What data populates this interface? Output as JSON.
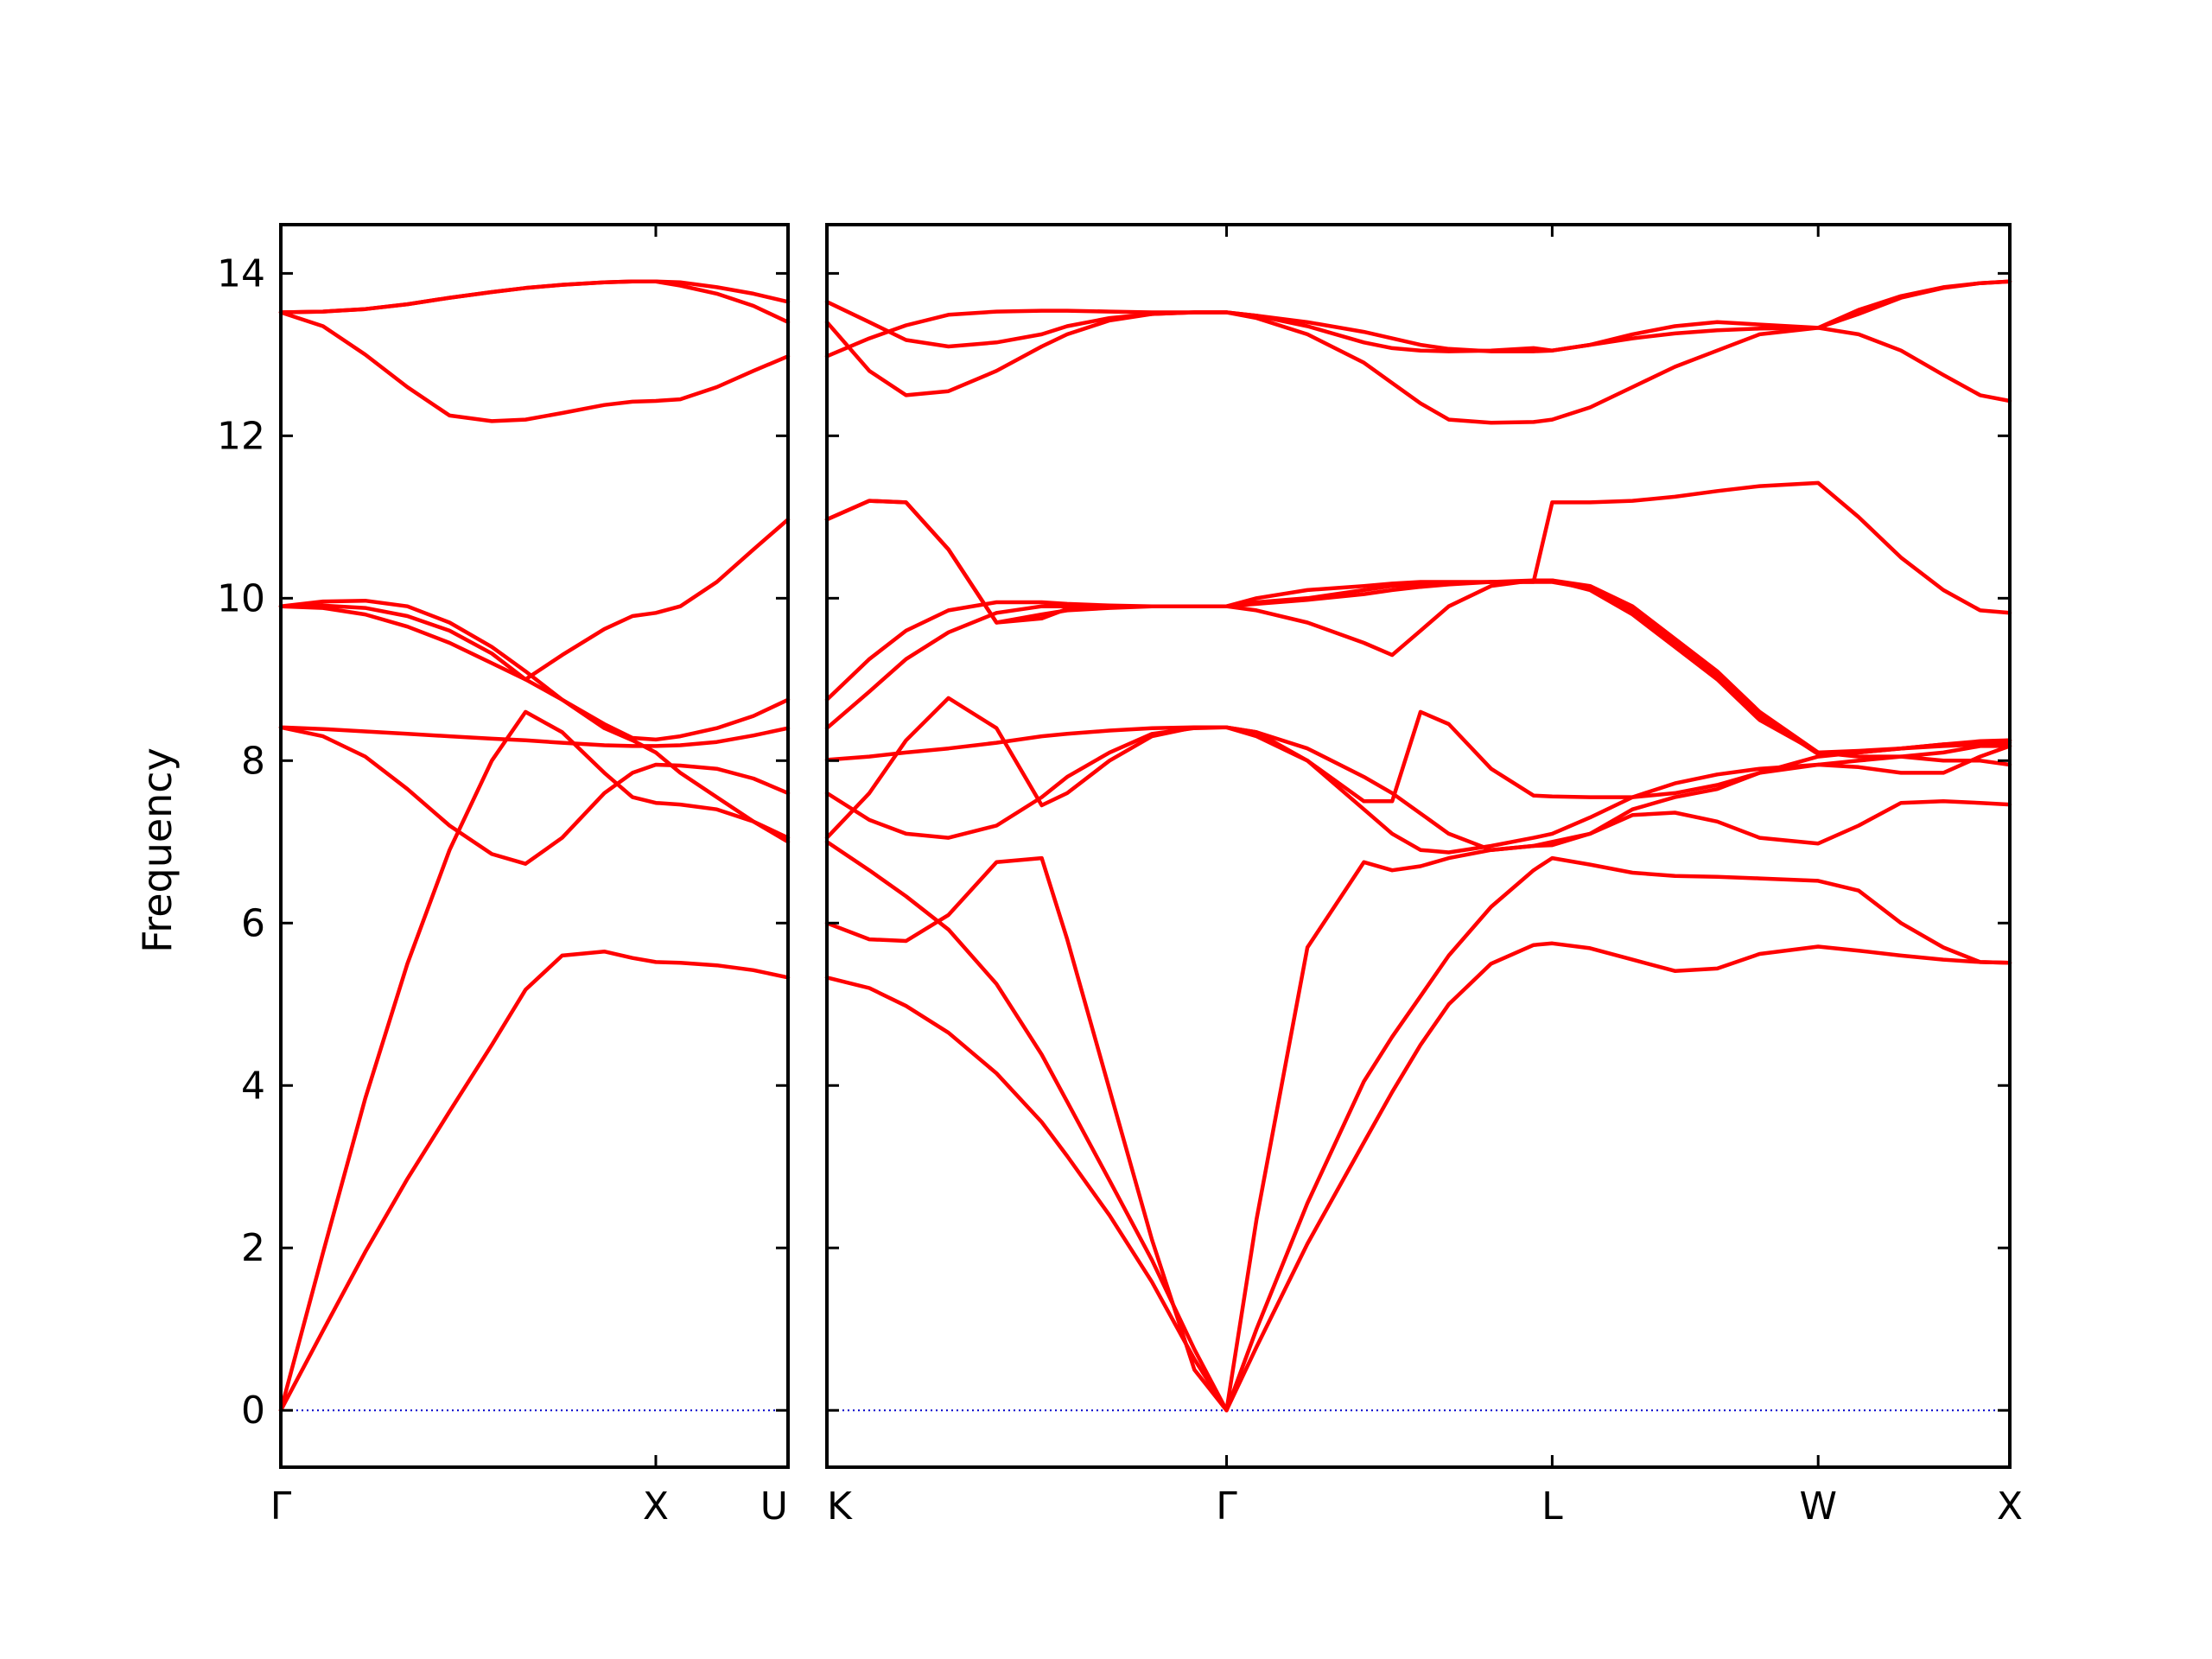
{
  "chart_data": {
    "type": "line",
    "title": "",
    "ylabel": "Frequency",
    "xlabel": "",
    "ylim": [
      -0.7,
      14.6
    ],
    "yticks": [
      0,
      2,
      4,
      6,
      8,
      10,
      12,
      14
    ],
    "grid": false,
    "legend": "none",
    "colors": {
      "bands": "#ff0000",
      "zero_line": "#0000cc",
      "frame": "#000000"
    },
    "panels": [
      {
        "xlim": [
          0,
          1.803
        ],
        "ticks": [
          {
            "x": 0,
            "label": "Γ"
          },
          {
            "x": 1.333,
            "label": "X"
          },
          {
            "x": 1.803,
            "label": "U"
          }
        ],
        "x": [
          0,
          0.15,
          0.3,
          0.45,
          0.6,
          0.75,
          0.87,
          1.0,
          1.15,
          1.25,
          1.333,
          1.42,
          1.55,
          1.68,
          1.803
        ],
        "series": [
          {
            "values": [
              0.0,
              0.98,
              1.95,
              2.85,
              3.68,
              4.5,
              5.18,
              5.6,
              5.65,
              5.57,
              5.52,
              5.51,
              5.48,
              5.42,
              5.33
            ]
          },
          {
            "values": [
              0.0,
              1.94,
              3.84,
              5.5,
              6.9,
              8.0,
              8.6,
              8.35,
              7.85,
              7.55,
              7.48,
              7.46,
              7.4,
              7.25,
              7.0
            ]
          },
          {
            "values": [
              8.41,
              8.3,
              8.05,
              7.65,
              7.2,
              6.85,
              6.73,
              7.05,
              7.6,
              7.85,
              7.95,
              7.94,
              7.9,
              7.78,
              7.6
            ]
          },
          {
            "values": [
              8.41,
              8.39,
              8.36,
              8.33,
              8.3,
              8.27,
              8.25,
              8.22,
              8.19,
              8.18,
              8.18,
              8.19,
              8.23,
              8.31,
              8.4
            ]
          },
          {
            "values": [
              9.9,
              9.91,
              9.88,
              9.78,
              9.6,
              9.32,
              9.0,
              9.3,
              9.62,
              9.78,
              9.82,
              9.9,
              10.2,
              10.6,
              10.97
            ]
          },
          {
            "values": [
              9.9,
              9.88,
              9.8,
              9.65,
              9.45,
              9.2,
              9.0,
              8.75,
              8.45,
              8.28,
              8.26,
              8.3,
              8.4,
              8.55,
              8.75
            ]
          },
          {
            "values": [
              9.9,
              9.96,
              9.97,
              9.9,
              9.7,
              9.4,
              9.1,
              8.75,
              8.4,
              8.25,
              8.1,
              7.85,
              7.55,
              7.25,
              7.05
            ]
          },
          {
            "values": [
              13.52,
              13.35,
              13.0,
              12.6,
              12.25,
              12.18,
              12.2,
              12.28,
              12.38,
              12.42,
              12.43,
              12.45,
              12.6,
              12.8,
              12.98
            ]
          },
          {
            "values": [
              13.52,
              13.53,
              13.56,
              13.62,
              13.7,
              13.77,
              13.82,
              13.86,
              13.89,
              13.9,
              13.9,
              13.85,
              13.75,
              13.6,
              13.4
            ]
          },
          {
            "values": [
              13.52,
              13.53,
              13.56,
              13.62,
              13.7,
              13.77,
              13.82,
              13.86,
              13.89,
              13.9,
              13.9,
              13.89,
              13.83,
              13.75,
              13.65
            ]
          }
        ]
      },
      {
        "xlim": [
          0,
          4.185
        ],
        "ticks": [
          {
            "x": 0,
            "label": "K"
          },
          {
            "x": 1.414,
            "label": "Γ"
          },
          {
            "x": 2.566,
            "label": "L"
          },
          {
            "x": 3.507,
            "label": "W"
          },
          {
            "x": 4.185,
            "label": "X"
          }
        ],
        "x": [
          0,
          0.15,
          0.28,
          0.43,
          0.6,
          0.76,
          0.85,
          1.0,
          1.15,
          1.3,
          1.414,
          1.52,
          1.7,
          1.9,
          2.0,
          2.1,
          2.2,
          2.35,
          2.5,
          2.566,
          2.7,
          2.85,
          3.0,
          3.15,
          3.3,
          3.507,
          3.65,
          3.8,
          3.95,
          4.08,
          4.185
        ],
        "series": [
          {
            "values": [
              5.33,
              5.2,
              4.98,
              4.65,
              4.15,
              3.55,
              3.13,
              2.4,
              1.58,
              0.63,
              0.0,
              0.78,
              2.05,
              3.3,
              3.92,
              4.5,
              5.0,
              5.5,
              5.73,
              5.75,
              5.69,
              5.55,
              5.41,
              5.44,
              5.62,
              5.71,
              5.66,
              5.6,
              5.55,
              5.52,
              5.51
            ]
          },
          {
            "values": [
              7.0,
              6.65,
              6.33,
              5.92,
              5.25,
              4.38,
              3.8,
              2.83,
              1.85,
              0.75,
              0.0,
              1.0,
              2.55,
              4.05,
              4.6,
              5.1,
              5.6,
              6.2,
              6.65,
              6.8,
              6.72,
              6.62,
              6.58,
              6.57,
              6.55,
              6.52,
              6.4,
              6.0,
              5.7,
              5.52,
              5.51
            ]
          },
          {
            "values": [
              6.0,
              5.8,
              5.78,
              6.1,
              6.75,
              6.8,
              5.8,
              3.95,
              2.1,
              0.5,
              0.0,
              2.35,
              5.7,
              6.75,
              6.65,
              6.7,
              6.8,
              6.9,
              6.95,
              6.96,
              7.1,
              7.33,
              7.36,
              7.25,
              7.05,
              6.98,
              7.2,
              7.48,
              7.5,
              7.48,
              7.46
            ]
          },
          {
            "values": [
              7.6,
              7.27,
              7.1,
              7.05,
              7.2,
              7.55,
              7.8,
              8.1,
              8.33,
              8.4,
              8.41,
              8.3,
              8.0,
              7.4,
              7.1,
              6.9,
              6.87,
              6.95,
              7.05,
              7.1,
              7.3,
              7.55,
              7.72,
              7.83,
              7.9,
              7.95,
              8.0,
              8.05,
              8.1,
              8.18,
              8.18
            ]
          },
          {
            "values": [
              7.05,
              7.6,
              8.25,
              8.77,
              8.4,
              7.45,
              7.6,
              8.0,
              8.3,
              8.41,
              8.41,
              8.35,
              8.0,
              7.5,
              7.5,
              8.6,
              8.45,
              7.9,
              7.57,
              7.56,
              7.55,
              7.55,
              7.6,
              7.7,
              7.85,
              7.95,
              7.92,
              7.85,
              7.85,
              8.05,
              8.18
            ]
          },
          {
            "values": [
              8.01,
              8.05,
              8.1,
              8.15,
              8.22,
              8.3,
              8.33,
              8.37,
              8.4,
              8.41,
              8.41,
              8.35,
              8.15,
              7.8,
              7.6,
              7.35,
              7.1,
              6.9,
              6.95,
              7.0,
              7.1,
              7.4,
              7.55,
              7.65,
              7.85,
              8.05,
              8.1,
              8.15,
              8.2,
              8.24,
              8.25
            ]
          },
          {
            "values": [
              8.4,
              8.85,
              9.25,
              9.58,
              9.82,
              9.9,
              9.9,
              9.9,
              9.9,
              9.9,
              9.9,
              9.85,
              9.7,
              9.45,
              9.3,
              9.6,
              9.9,
              10.15,
              10.22,
              10.22,
              10.1,
              9.8,
              9.4,
              9.0,
              8.5,
              8.1,
              8.05,
              8.05,
              8.0,
              8.0,
              7.95
            ]
          },
          {
            "values": [
              8.75,
              9.25,
              9.6,
              9.85,
              9.95,
              9.95,
              9.93,
              9.91,
              9.9,
              9.9,
              9.9,
              9.93,
              9.98,
              10.05,
              10.1,
              10.14,
              10.17,
              10.2,
              10.22,
              10.22,
              10.15,
              9.9,
              9.5,
              9.1,
              8.6,
              8.1,
              8.12,
              8.15,
              8.2,
              8.22,
              8.25
            ]
          },
          {
            "values": [
              10.97,
              11.2,
              11.18,
              10.6,
              9.7,
              9.8,
              9.85,
              9.88,
              9.9,
              9.9,
              9.9,
              9.95,
              10.0,
              10.1,
              10.15,
              10.17,
              10.19,
              10.2,
              10.2,
              10.2,
              10.12,
              9.85,
              9.45,
              9.05,
              8.55,
              8.08,
              8.1,
              8.15,
              8.18,
              8.2,
              8.22
            ]
          },
          {
            "values": [
              10.97,
              11.2,
              11.18,
              10.6,
              9.7,
              9.75,
              9.87,
              9.9,
              9.9,
              9.9,
              9.9,
              10.0,
              10.1,
              10.15,
              10.18,
              10.2,
              10.2,
              10.2,
              10.2,
              11.18,
              11.18,
              11.2,
              11.25,
              11.32,
              11.38,
              11.42,
              11.0,
              10.5,
              10.1,
              9.85,
              9.82
            ]
          },
          {
            "values": [
              12.98,
              13.2,
              13.36,
              13.49,
              13.53,
              13.54,
              13.54,
              13.53,
              13.52,
              13.52,
              13.52,
              13.48,
              13.35,
              13.15,
              13.08,
              13.05,
              13.04,
              13.05,
              13.08,
              13.05,
              13.12,
              13.2,
              13.26,
              13.3,
              13.32,
              13.33,
              13.5,
              13.7,
              13.82,
              13.88,
              13.9
            ]
          },
          {
            "values": [
              13.65,
              13.4,
              13.18,
              13.1,
              13.15,
              13.25,
              13.35,
              13.45,
              13.5,
              13.52,
              13.52,
              13.45,
              13.25,
              12.9,
              12.65,
              12.4,
              12.2,
              12.16,
              12.17,
              12.2,
              12.35,
              12.6,
              12.85,
              13.05,
              13.25,
              13.33,
              13.25,
              13.05,
              12.75,
              12.5,
              12.43
            ]
          },
          {
            "values": [
              13.4,
              12.8,
              12.5,
              12.55,
              12.8,
              13.1,
              13.25,
              13.42,
              13.5,
              13.52,
              13.52,
              13.48,
              13.4,
              13.28,
              13.2,
              13.12,
              13.07,
              13.04,
              13.04,
              13.05,
              13.12,
              13.25,
              13.35,
              13.4,
              13.37,
              13.33,
              13.55,
              13.72,
              13.83,
              13.88,
              13.9
            ]
          }
        ]
      }
    ]
  }
}
